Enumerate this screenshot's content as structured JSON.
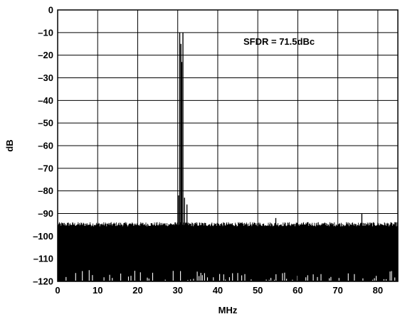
{
  "chart_data": {
    "type": "line",
    "title": "",
    "xlabel": "MHz",
    "ylabel": "dB",
    "xlim": [
      0,
      85
    ],
    "ylim": [
      -120,
      0
    ],
    "x_ticks": [
      0,
      10,
      20,
      30,
      40,
      50,
      60,
      70,
      80
    ],
    "y_ticks": [
      0,
      -10,
      -20,
      -30,
      -40,
      -50,
      -60,
      -70,
      -80,
      -90,
      -100,
      -110,
      -120
    ],
    "x_tick_labels": [
      "0",
      "10",
      "20",
      "30",
      "40",
      "50",
      "60",
      "70",
      "80"
    ],
    "y_tick_labels": [
      "0",
      "–10",
      "–20",
      "–30",
      "–40",
      "–50",
      "–60",
      "–70",
      "–80",
      "–90",
      "–100",
      "–110",
      "–120"
    ],
    "grid": true,
    "annotation": "SFDR = 71.5dBc",
    "noise_floor": {
      "top_db": -96,
      "bottom_db": -120
    },
    "series": [
      {
        "x": [
          30.2,
          30.5,
          30.8,
          31.0,
          31.3,
          31.7,
          32.3,
          54.5,
          76.0
        ],
        "y": [
          -82,
          -10,
          -15,
          -23,
          -10,
          -83,
          -86,
          -92,
          -90
        ]
      }
    ]
  }
}
